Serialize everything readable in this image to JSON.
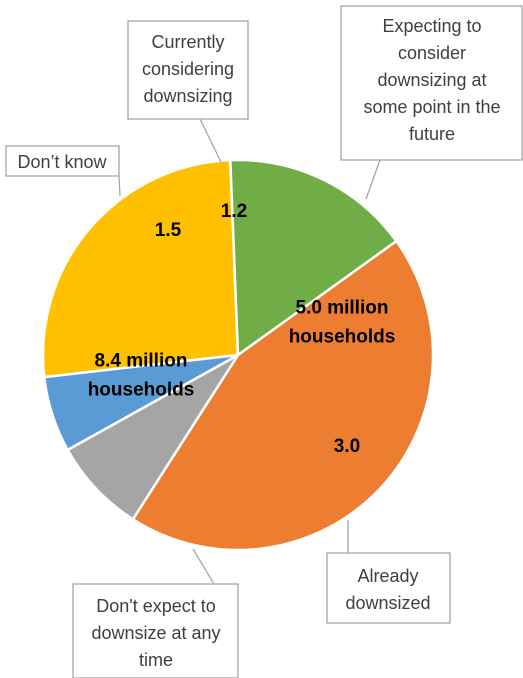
{
  "chart_data": {
    "type": "pie",
    "title": "",
    "slices": [
      {
        "category": "Expecting to consider downsizing at some point in the future",
        "label_lines": [
          "Expecting to",
          "consider",
          "downsizing at",
          "some point in the",
          "future"
        ],
        "value": 5.0,
        "data_label_lines": [
          "5.0 million",
          "households"
        ],
        "color": "#FFC000"
      },
      {
        "category": "Already downsized",
        "label_lines": [
          "Already",
          "downsized"
        ],
        "value": 3.0,
        "data_label_lines": [
          "3.0"
        ],
        "color": "#70AD47"
      },
      {
        "category": "Don't expect to downsize at any time",
        "label_lines": [
          "Don't expect to",
          "downsize at any",
          "time"
        ],
        "value": 8.4,
        "data_label_lines": [
          "8.4 million",
          "households"
        ],
        "color": "#ED7D31"
      },
      {
        "category": "Don’t know",
        "label_lines": [
          "Don’t know"
        ],
        "value": 1.5,
        "data_label_lines": [
          "1.5"
        ],
        "color": "#A5A5A5"
      },
      {
        "category": "Currently considering downsizing",
        "label_lines": [
          "Currently",
          "considering",
          "downsizing"
        ],
        "value": 1.2,
        "data_label_lines": [
          "1.2"
        ],
        "color": "#5B9BD5"
      }
    ],
    "unit": "million households",
    "legend": "none"
  }
}
